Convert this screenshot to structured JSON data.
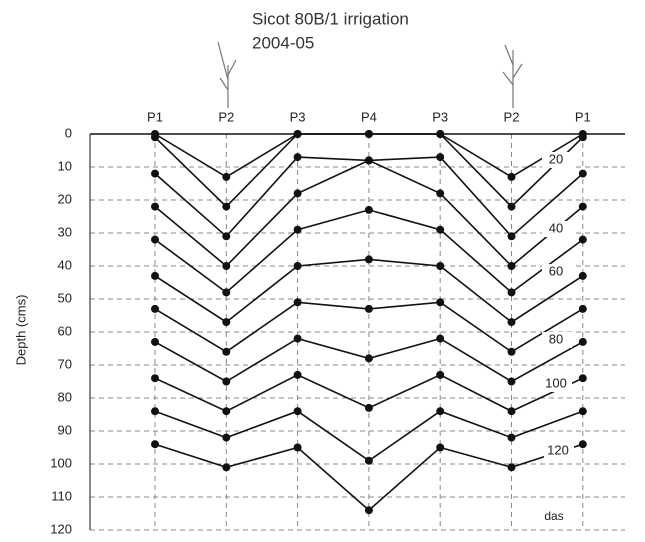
{
  "chart_data": {
    "type": "line",
    "title": "Sicot 80B/1 irrigation",
    "subtitle": "2004-05",
    "y_label": "Depth (cms)",
    "categories": [
      "P1",
      "P2",
      "P3",
      "P4",
      "P3",
      "P2",
      "P1"
    ],
    "ylim": [
      0,
      120
    ],
    "yticks": [
      0,
      10,
      20,
      30,
      40,
      50,
      60,
      70,
      80,
      90,
      100,
      110,
      120
    ],
    "y_inverted": true,
    "grid": true,
    "color": "#111",
    "series": [
      {
        "values": [
          0,
          13,
          0,
          0,
          0,
          13,
          0
        ]
      },
      {
        "values": [
          1,
          22,
          0,
          0,
          0,
          22,
          1
        ]
      },
      {
        "values": [
          12,
          31,
          7,
          8,
          7,
          31,
          12
        ]
      },
      {
        "values": [
          22,
          40,
          18,
          8,
          18,
          40,
          22
        ]
      },
      {
        "values": [
          32,
          48,
          29,
          23,
          29,
          48,
          32
        ]
      },
      {
        "values": [
          43,
          57,
          40,
          38,
          40,
          57,
          43
        ]
      },
      {
        "values": [
          53,
          66,
          51,
          53,
          51,
          66,
          53
        ]
      },
      {
        "values": [
          63,
          75,
          62,
          68,
          62,
          75,
          63
        ]
      },
      {
        "values": [
          74,
          84,
          73,
          83,
          73,
          84,
          74
        ]
      },
      {
        "values": [
          84,
          92,
          84,
          99,
          84,
          92,
          84
        ]
      },
      {
        "values": [
          94,
          101,
          95,
          114,
          95,
          101,
          94
        ]
      }
    ],
    "annotations": [
      "20",
      "40",
      "60",
      "80",
      "100",
      "120"
    ],
    "annotation_unit": "das"
  }
}
